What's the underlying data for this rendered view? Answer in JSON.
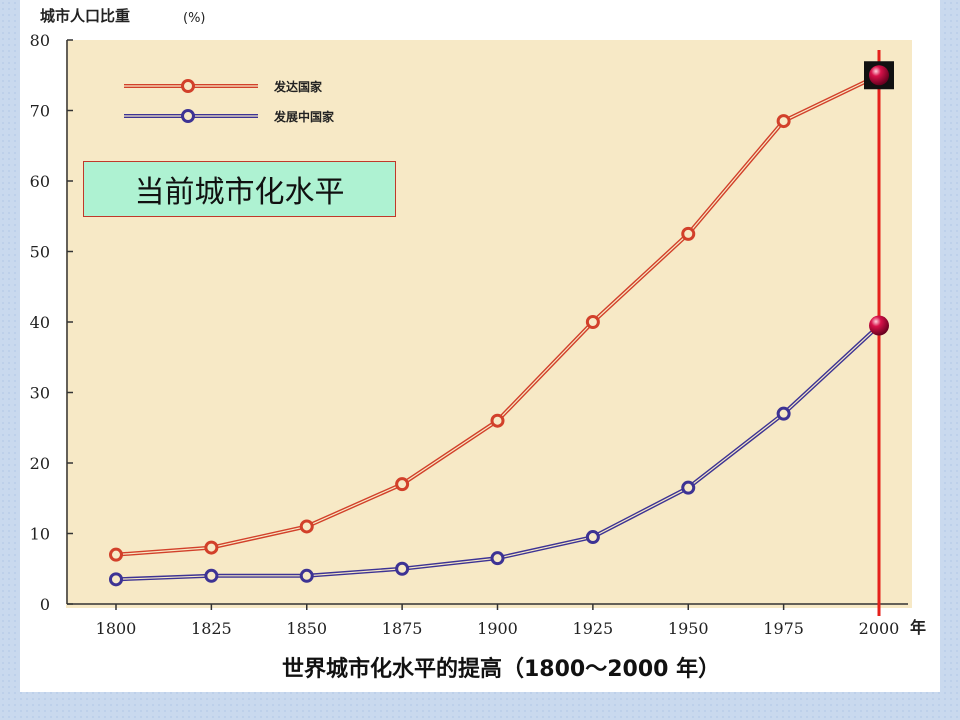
{
  "slide": {
    "callout_text": "当前城市化水平"
  },
  "chart_data": {
    "type": "line",
    "title": "世界城市化水平的提高（1800～2000 年）",
    "ylabel": "城市人口比重",
    "ylabel_unit": "(%)",
    "xlabel_unit": "年",
    "x": [
      1800,
      1825,
      1850,
      1875,
      1900,
      1925,
      1950,
      1975,
      2000
    ],
    "ylim": [
      0,
      80
    ],
    "yticks": [
      0,
      10,
      20,
      30,
      40,
      50,
      60,
      70,
      80
    ],
    "grid": false,
    "legend_position": "top-left",
    "series": [
      {
        "name": "发达国家",
        "color": "#d2402a",
        "values": [
          7,
          8,
          11,
          17,
          26,
          40,
          52.5,
          68.5,
          75
        ]
      },
      {
        "name": "发展中国家",
        "color": "#3d3394",
        "values": [
          3.5,
          4,
          4,
          5,
          6.5,
          9.5,
          16.5,
          27,
          39.5
        ]
      }
    ],
    "highlight": {
      "x": 2000,
      "color": "#e5201b",
      "marker_color": "#d8124a"
    }
  }
}
